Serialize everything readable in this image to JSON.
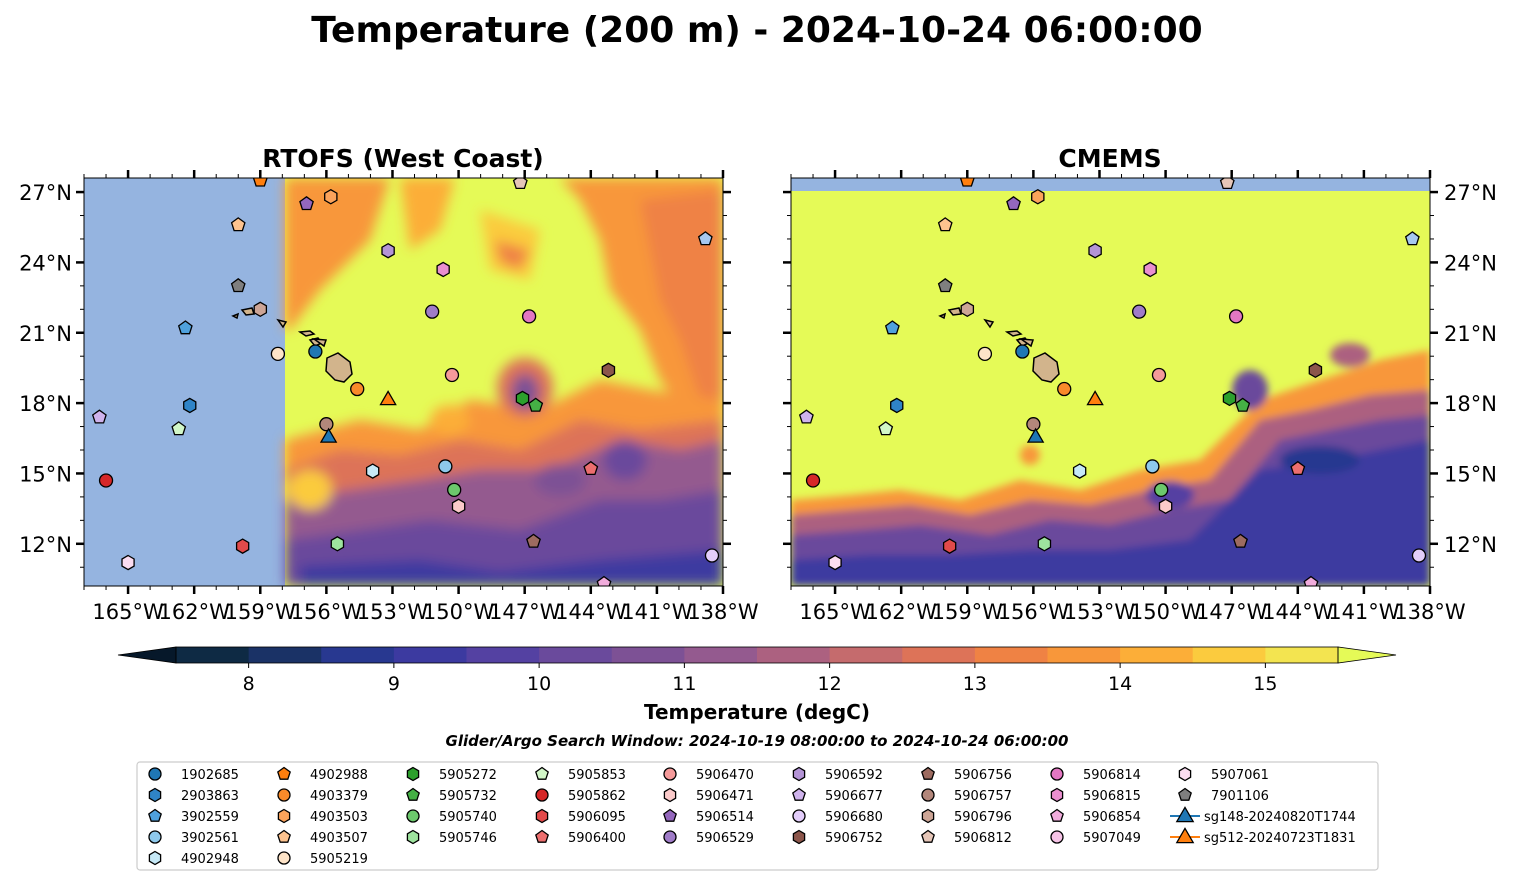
{
  "figure": {
    "title": "Temperature (200 m) - 2024-10-24 06:00:00",
    "search_window": "Glider/Argo Search Window: 2024-10-19 08:00:00 to 2024-10-24 06:00:00"
  },
  "chart_data": [
    {
      "type": "heatmap",
      "title": "RTOFS (West Coast)",
      "xlim": [
        -167,
        -138
      ],
      "ylim": [
        10.2,
        27.6
      ],
      "xticks": [
        "165°W",
        "162°W",
        "159°W",
        "156°W",
        "153°W",
        "150°W",
        "147°W",
        "144°W",
        "141°W",
        "138°W"
      ],
      "yticks": [
        "27°N",
        "24°N",
        "21°N",
        "18°N",
        "15°N",
        "12°N"
      ],
      "model_domain_west_lon": -157.9,
      "missing_color": "#95b4e0"
    },
    {
      "type": "heatmap",
      "title": "CMEMS",
      "xlim": [
        -167,
        -138
      ],
      "ylim": [
        10.2,
        27.6
      ],
      "xticks": [
        "165°W",
        "162°W",
        "159°W",
        "156°W",
        "153°W",
        "150°W",
        "147°W",
        "144°W",
        "141°W",
        "138°W"
      ],
      "yticks": [
        "27°N",
        "24°N",
        "21°N",
        "18°N",
        "15°N",
        "12°N"
      ],
      "missing_color": "#95b4e0"
    }
  ],
  "colorbar": {
    "label": "Temperature (degC)",
    "ticks": [
      "8",
      "9",
      "10",
      "11",
      "12",
      "13",
      "14",
      "15"
    ],
    "min": 7.5,
    "max": 15.5,
    "levels": [
      "#0e2a44",
      "#1a3266",
      "#283890",
      "#3c3aa0",
      "#5441a2",
      "#6a4a9c",
      "#7d5195",
      "#945a8f",
      "#ac6180",
      "#c56b6d",
      "#dd7358",
      "#ef8244",
      "#f8973a",
      "#fcae38",
      "#fbcb3e",
      "#f3e450"
    ],
    "under_color": "#06182a",
    "over_color": "#e5fa57"
  },
  "legend": [
    {
      "id": "1902685",
      "marker": "circle",
      "color": "#1f77b4",
      "lat": 20.2,
      "lon": -156.5
    },
    {
      "id": "2903863",
      "marker": "hexagon",
      "color": "#2f84c7",
      "lat": 17.9,
      "lon": -162.2
    },
    {
      "id": "3902559",
      "marker": "pentagon",
      "color": "#4fa1dd",
      "lat": 21.2,
      "lon": -162.4
    },
    {
      "id": "3902561",
      "marker": "circle",
      "color": "#8ec9ec",
      "lat": 15.3,
      "lon": -150.6
    },
    {
      "id": "4902948",
      "marker": "hexagon",
      "color": "#c6e9f7",
      "lat": 15.1,
      "lon": -153.9
    },
    {
      "id": "4902988",
      "marker": "pentagon",
      "color": "#ff7f0e",
      "lat": 27.5,
      "lon": -159.0
    },
    {
      "id": "4903379",
      "marker": "circle",
      "color": "#f98a2a",
      "lat": 18.6,
      "lon": -154.6
    },
    {
      "id": "4903503",
      "marker": "hexagon",
      "color": "#fba35b",
      "lat": 26.8,
      "lon": -155.8
    },
    {
      "id": "4903507",
      "marker": "pentagon",
      "color": "#fdc38f",
      "lat": 25.6,
      "lon": -160.0
    },
    {
      "id": "5905219",
      "marker": "circle",
      "color": "#fee4c8",
      "lat": 20.1,
      "lon": -158.2
    },
    {
      "id": "5905272",
      "marker": "hexagon",
      "color": "#2ca02c",
      "lat": 18.2,
      "lon": -147.1
    },
    {
      "id": "5905732",
      "marker": "pentagon",
      "color": "#45b045",
      "lat": 17.9,
      "lon": -146.5
    },
    {
      "id": "5905740",
      "marker": "circle",
      "color": "#6cc86c",
      "lat": 14.3,
      "lon": -150.2
    },
    {
      "id": "5905746",
      "marker": "hexagon",
      "color": "#9ee39e",
      "lat": 12.0,
      "lon": -155.5
    },
    {
      "id": "5905853",
      "marker": "pentagon",
      "color": "#d2f7c8",
      "lat": 16.9,
      "lon": -162.7
    },
    {
      "id": "5905862",
      "marker": "circle",
      "color": "#d62728",
      "lat": 14.7,
      "lon": -166.0
    },
    {
      "id": "5906095",
      "marker": "hexagon",
      "color": "#e24a4a",
      "lat": 11.9,
      "lon": -159.8
    },
    {
      "id": "5906400",
      "marker": "pentagon",
      "color": "#ec6e6e",
      "lat": 15.2,
      "lon": -144.0
    },
    {
      "id": "5906470",
      "marker": "circle",
      "color": "#f59a9a",
      "lat": 19.2,
      "lon": -150.3
    },
    {
      "id": "5906471",
      "marker": "hexagon",
      "color": "#fbcaca",
      "lat": 13.6,
      "lon": -150.0
    },
    {
      "id": "5906514",
      "marker": "pentagon",
      "color": "#9467bd",
      "lat": 26.5,
      "lon": -156.9
    },
    {
      "id": "5906529",
      "marker": "circle",
      "color": "#a07cc8",
      "lat": 21.9,
      "lon": -151.2
    },
    {
      "id": "5906592",
      "marker": "hexagon",
      "color": "#b494d6",
      "lat": 24.5,
      "lon": -153.2
    },
    {
      "id": "5906677",
      "marker": "pentagon",
      "color": "#cfb3ec",
      "lat": 17.4,
      "lon": -166.3
    },
    {
      "id": "5906680",
      "marker": "circle",
      "color": "#e3cdfa",
      "lat": 11.5,
      "lon": -138.5
    },
    {
      "id": "5906752",
      "marker": "hexagon",
      "color": "#8c564b",
      "lat": 19.4,
      "lon": -143.2
    },
    {
      "id": "5906756",
      "marker": "pentagon",
      "color": "#9d6b60",
      "lat": 12.1,
      "lon": -146.6
    },
    {
      "id": "5906757",
      "marker": "circle",
      "color": "#b3877b",
      "lat": 17.1,
      "lon": -156.0
    },
    {
      "id": "5906796",
      "marker": "hexagon",
      "color": "#cda596",
      "lat": 22.0,
      "lon": -159.0
    },
    {
      "id": "5906812",
      "marker": "pentagon",
      "color": "#e6c6b8",
      "lat": 27.4,
      "lon": -147.2
    },
    {
      "id": "5906814",
      "marker": "circle",
      "color": "#e377c2",
      "lat": 21.7,
      "lon": -146.8
    },
    {
      "id": "5906815",
      "marker": "hexagon",
      "color": "#ea8fcf",
      "lat": 23.7,
      "lon": -150.7
    },
    {
      "id": "5906854",
      "marker": "pentagon",
      "color": "#f1acdc",
      "lat": 10.3,
      "lon": -143.4
    },
    {
      "id": "5907049",
      "marker": "circle",
      "color": "#f6c3e6",
      "lat": null,
      "lon": null
    },
    {
      "id": "5907061",
      "marker": "hexagon",
      "color": "#fbdcf1",
      "lat": 11.2,
      "lon": -165.0
    },
    {
      "id": "7901106",
      "marker": "pentagon",
      "color": "#7f7f7f",
      "lat": 23.0,
      "lon": -160.0
    },
    {
      "id": "sg148-20240820T1744",
      "marker": "triangle",
      "color": "#1f77b4",
      "lat": 16.6,
      "lon": -155.9
    },
    {
      "id": "sg512-20240723T1831",
      "marker": "triangle",
      "color": "#ff7f0e",
      "lat": 18.2,
      "lon": -153.2
    }
  ],
  "extra_markers": [
    {
      "marker": "pentagon",
      "color": "#a6c8f0",
      "lat": 25.0,
      "lon": -138.8
    }
  ]
}
